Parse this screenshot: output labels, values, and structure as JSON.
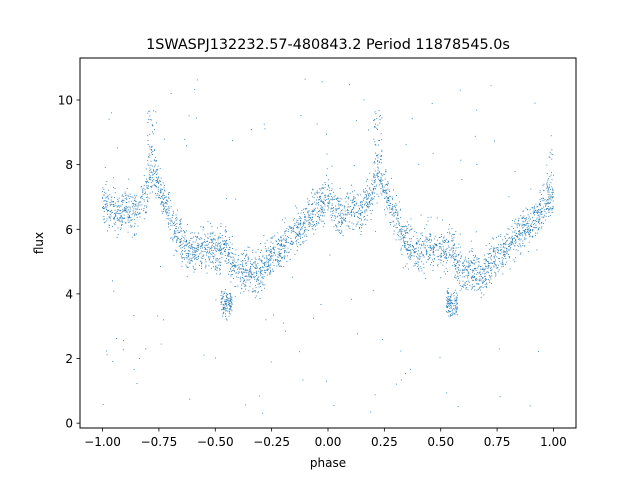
{
  "chart_data": {
    "type": "scatter",
    "title": "1SWASPJ132232.57-480843.2 Period 11878545.0s",
    "xlabel": "phase",
    "ylabel": "flux",
    "xlim": [
      -1.1,
      1.1
    ],
    "ylim": [
      -0.15,
      11.3
    ],
    "xticks": [
      -1.0,
      -0.75,
      -0.5,
      -0.25,
      0.0,
      0.25,
      0.5,
      0.75,
      1.0
    ],
    "xtick_labels": [
      "−1.00",
      "−0.75",
      "−0.50",
      "−0.25",
      "0.00",
      "0.25",
      "0.50",
      "0.75",
      "1.00"
    ],
    "yticks": [
      0,
      2,
      4,
      6,
      8,
      10
    ],
    "ytick_labels": [
      "0",
      "2",
      "4",
      "6",
      "8",
      "10"
    ],
    "grid": false,
    "legend": "none",
    "marker_color": "#1f77b4",
    "series": [
      {
        "profile_x": [
          -1.0,
          -0.97,
          -0.93,
          -0.9,
          -0.86,
          -0.83,
          -0.8,
          -0.78,
          -0.76,
          -0.73,
          -0.7,
          -0.67,
          -0.63,
          -0.6,
          -0.57,
          -0.54,
          -0.5,
          -0.47,
          -0.45,
          -0.43,
          -0.4,
          -0.37,
          -0.35,
          -0.32,
          -0.3,
          -0.25,
          -0.2,
          -0.15,
          -0.1,
          -0.05,
          0.0,
          0.03,
          0.07,
          0.1,
          0.14,
          0.17,
          0.2,
          0.22,
          0.24,
          0.27,
          0.3,
          0.33,
          0.37,
          0.4,
          0.43,
          0.46,
          0.5,
          0.53,
          0.55,
          0.57,
          0.6,
          0.63,
          0.65,
          0.68,
          0.7,
          0.75,
          0.8,
          0.85,
          0.9,
          0.95,
          1.0
        ],
        "profile_y": [
          7.0,
          6.6,
          6.4,
          6.7,
          6.5,
          6.8,
          7.3,
          7.8,
          7.5,
          6.9,
          6.4,
          5.8,
          5.4,
          5.2,
          5.4,
          5.5,
          5.3,
          5.4,
          5.6,
          4.9,
          4.6,
          4.8,
          4.7,
          4.6,
          4.7,
          5.2,
          5.5,
          5.9,
          6.2,
          6.6,
          7.0,
          6.6,
          6.4,
          6.7,
          6.5,
          6.8,
          7.3,
          7.8,
          7.5,
          6.9,
          6.4,
          5.8,
          5.4,
          5.2,
          5.4,
          5.5,
          5.3,
          5.4,
          5.6,
          4.9,
          4.6,
          4.8,
          4.7,
          4.6,
          4.7,
          5.2,
          5.5,
          5.9,
          6.2,
          6.6,
          7.0
        ],
        "spread": 0.55,
        "dip_x": [
          -0.45,
          0.55
        ],
        "dip_y": 3.7,
        "peaks": [
          {
            "x": -0.78,
            "y": 9.7
          },
          {
            "x": 0.22,
            "y": 9.7
          },
          {
            "x": 0.99,
            "y": 8.5
          }
        ]
      }
    ]
  }
}
